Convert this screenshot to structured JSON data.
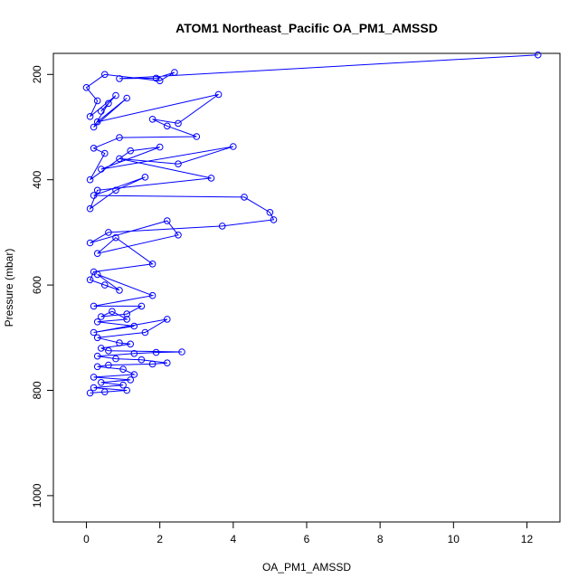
{
  "chart_data": {
    "type": "scatter",
    "title": "ATOM1 Northeast_Pacific OA_PM1_AMSSD",
    "xlabel": "OA_PM1_AMSSD",
    "ylabel": "Pressure (mbar)",
    "xlim": [
      -0.9,
      12.9
    ],
    "ylim": [
      1050,
      160
    ],
    "y_reversed": true,
    "xticks": [
      "0",
      "2",
      "4",
      "6",
      "8",
      "10",
      "12"
    ],
    "yticks": [
      "200",
      "400",
      "600",
      "800",
      "1000"
    ],
    "grid": false,
    "legend": "none",
    "color": "#0000ff",
    "marker": "open-circle",
    "connected": true,
    "series": [
      {
        "x": [
          12.3,
          0.9,
          1.9,
          2.4,
          2.0,
          0.5,
          0.0,
          0.3,
          0.1,
          0.8,
          0.4,
          0.6,
          0.2,
          1.1,
          0.3,
          3.6,
          2.5,
          1.8,
          2.2,
          3.0,
          0.9,
          0.2,
          0.5,
          0.1,
          1.2,
          2.0,
          0.4,
          4.0,
          2.5,
          0.9,
          3.4,
          0.3,
          0.1,
          0.8,
          1.6,
          0.2,
          4.3,
          5.0,
          5.1,
          3.7,
          0.6,
          0.1,
          2.2,
          2.5,
          0.3,
          0.8,
          1.8,
          0.2,
          0.1,
          0.5,
          0.9,
          0.3,
          1.8,
          0.2,
          1.5,
          1.1,
          0.4,
          0.7,
          1.1,
          0.3,
          1.3,
          0.2,
          2.2,
          1.6,
          0.3,
          0.9,
          1.2,
          0.4,
          0.6,
          2.6,
          1.9,
          1.3,
          0.3,
          0.8,
          1.5,
          2.2,
          1.8,
          0.6,
          0.3,
          1.0,
          1.3,
          0.2,
          1.2,
          0.4,
          1.0,
          0.2,
          1.1,
          0.5,
          0.1
        ],
        "y": [
          163,
          208,
          207,
          196,
          212,
          200,
          225,
          250,
          280,
          240,
          270,
          255,
          300,
          245,
          290,
          238,
          293,
          285,
          298,
          318,
          320,
          340,
          350,
          400,
          345,
          338,
          380,
          337,
          370,
          360,
          397,
          420,
          455,
          420,
          395,
          430,
          433,
          462,
          476,
          488,
          500,
          520,
          478,
          505,
          540,
          510,
          560,
          575,
          590,
          600,
          610,
          580,
          620,
          640,
          640,
          655,
          660,
          650,
          665,
          670,
          678,
          690,
          665,
          690,
          700,
          710,
          712,
          720,
          725,
          727,
          728,
          730,
          735,
          740,
          742,
          748,
          750,
          752,
          755,
          760,
          770,
          775,
          780,
          785,
          790,
          795,
          800,
          803,
          805
        ]
      }
    ]
  }
}
